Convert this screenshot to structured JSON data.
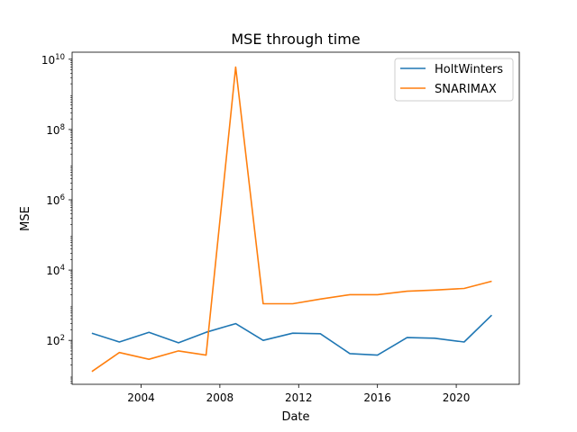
{
  "chart_data": {
    "type": "line",
    "title": "MSE through time",
    "xlabel": "Date",
    "ylabel": "MSE",
    "yscale": "log",
    "xlim": [
      2000.5,
      2023.2
    ],
    "ylim_log10": [
      0.75,
      10.2
    ],
    "x_ticks": [
      2004,
      2008,
      2012,
      2016,
      2020
    ],
    "x_tick_labels": [
      "2004",
      "2008",
      "2012",
      "2016",
      "2020"
    ],
    "y_ticks_log10": [
      2,
      4,
      6,
      8,
      10
    ],
    "y_tick_labels": [
      {
        "base": "10",
        "exp": "2"
      },
      {
        "base": "10",
        "exp": "4"
      },
      {
        "base": "10",
        "exp": "6"
      },
      {
        "base": "10",
        "exp": "8"
      },
      {
        "base": "10",
        "exp": "10"
      }
    ],
    "grid": false,
    "legend_position": "top-right",
    "x": [
      2001.5,
      2002.9,
      2004.4,
      2005.9,
      2007.3,
      2008.8,
      2010.2,
      2011.7,
      2013.1,
      2014.6,
      2016.0,
      2017.5,
      2018.9,
      2020.4,
      2021.8
    ],
    "series": [
      {
        "name": "HoltWinters",
        "color": "#1f77b4",
        "values": [
          160,
          90,
          170,
          85,
          170,
          300,
          100,
          160,
          155,
          42,
          38,
          120,
          115,
          90,
          520
        ]
      },
      {
        "name": "SNARIMAX",
        "color": "#ff7f0e",
        "values": [
          13,
          45,
          29,
          50,
          38,
          6000000000,
          1100,
          1100,
          1500,
          2000,
          2000,
          2500,
          2700,
          3000,
          4800
        ]
      }
    ]
  }
}
